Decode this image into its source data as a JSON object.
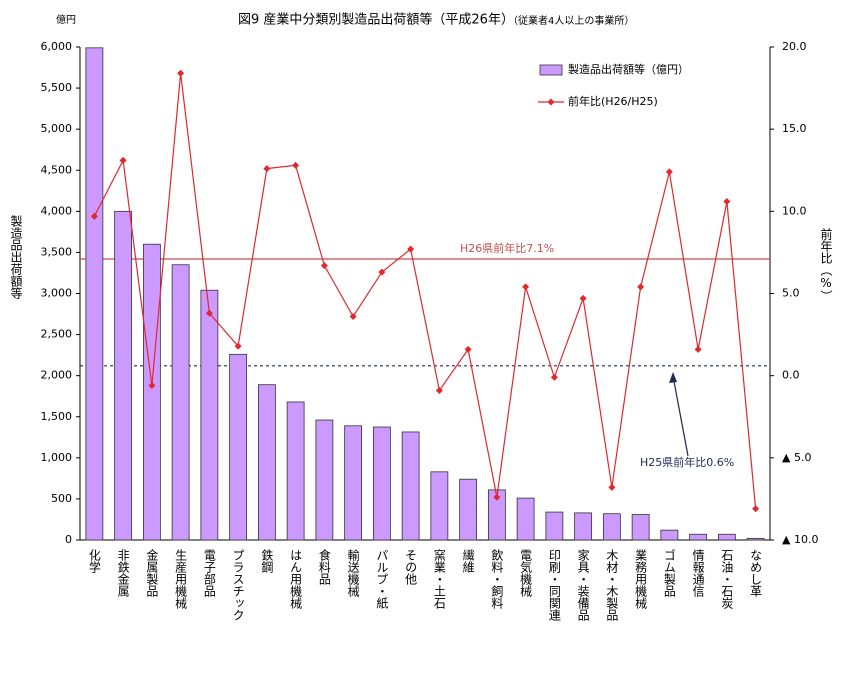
{
  "chart_data": {
    "type": "bar",
    "title": "図9  産業中分類別製造品出荷額等（平成26年）",
    "subtitle": "（従業者4人以上の事業所）",
    "y_unit": "億円",
    "ylabel": "製造品出荷額等",
    "y2label": "前年比（%）",
    "categories": [
      "化学",
      "非鉄金属",
      "金属製品",
      "生産用機械",
      "電子部品",
      "プラスチック",
      "鉄鋼",
      "はん用機械",
      "食料品",
      "輸送機械",
      "パルプ・紙",
      "その他",
      "窯業・土石",
      "繊維",
      "飲料・飼料",
      "電気機械",
      "印刷・同関連",
      "家具・装備品",
      "木材・木製品",
      "業務用機械",
      "ゴム製品",
      "情報通信",
      "石油・石炭",
      "なめし革"
    ],
    "series": [
      {
        "name": "製造品出荷額等（億円）",
        "type": "bar",
        "color": "#cc99ff",
        "values": [
          5990,
          4000,
          3600,
          3350,
          3040,
          2260,
          1890,
          1680,
          1460,
          1390,
          1375,
          1315,
          830,
          740,
          610,
          510,
          340,
          330,
          320,
          310,
          120,
          70,
          70,
          20
        ]
      },
      {
        "name": "前年比(H26/H25)",
        "type": "line",
        "axis": "y2",
        "color": "#e0282e",
        "values": [
          9.7,
          13.1,
          -0.6,
          18.4,
          3.8,
          1.8,
          12.6,
          12.8,
          6.7,
          3.6,
          6.3,
          7.7,
          -0.9,
          1.6,
          -7.4,
          5.4,
          -0.1,
          4.7,
          -6.8,
          5.4,
          12.4,
          1.6,
          10.6,
          -8.1
        ]
      }
    ],
    "ylim": [
      0,
      6000
    ],
    "yticks": [
      0,
      500,
      {
        "value": 1000,
        "label": "1,000"
      },
      {
        "value": 1500,
        "label": "1,500"
      },
      {
        "value": 2000,
        "label": "2,000"
      },
      {
        "value": 2500,
        "label": "2,500"
      },
      {
        "value": 3000,
        "label": "3,000"
      },
      {
        "value": 3500,
        "label": "3,500"
      },
      {
        "value": 4000,
        "label": "4,000"
      },
      {
        "value": 4500,
        "label": "4,500"
      },
      {
        "value": 5000,
        "label": "5,000"
      },
      {
        "value": 5500,
        "label": "5,500"
      },
      {
        "value": 6000,
        "label": "6,000"
      }
    ],
    "y2lim": [
      -10,
      20
    ],
    "y2ticks": [
      {
        "value": -10,
        "label": "▲ 10.0"
      },
      {
        "value": -5,
        "label": "▲ 5.0"
      },
      {
        "value": 0,
        "label": "0.0"
      },
      {
        "value": 5,
        "label": "5.0"
      },
      {
        "value": 10,
        "label": "10.0"
      },
      {
        "value": 15,
        "label": "15.0"
      },
      {
        "value": 20,
        "label": "20.0"
      }
    ],
    "reference_lines": [
      {
        "label": "H26県前年比7.1%",
        "value": 7.1,
        "style": "solid",
        "color": "#c0504d"
      },
      {
        "label": "H25県前年比0.6%",
        "value": 0.6,
        "style": "dashed",
        "color": "#1f2a55"
      }
    ]
  }
}
